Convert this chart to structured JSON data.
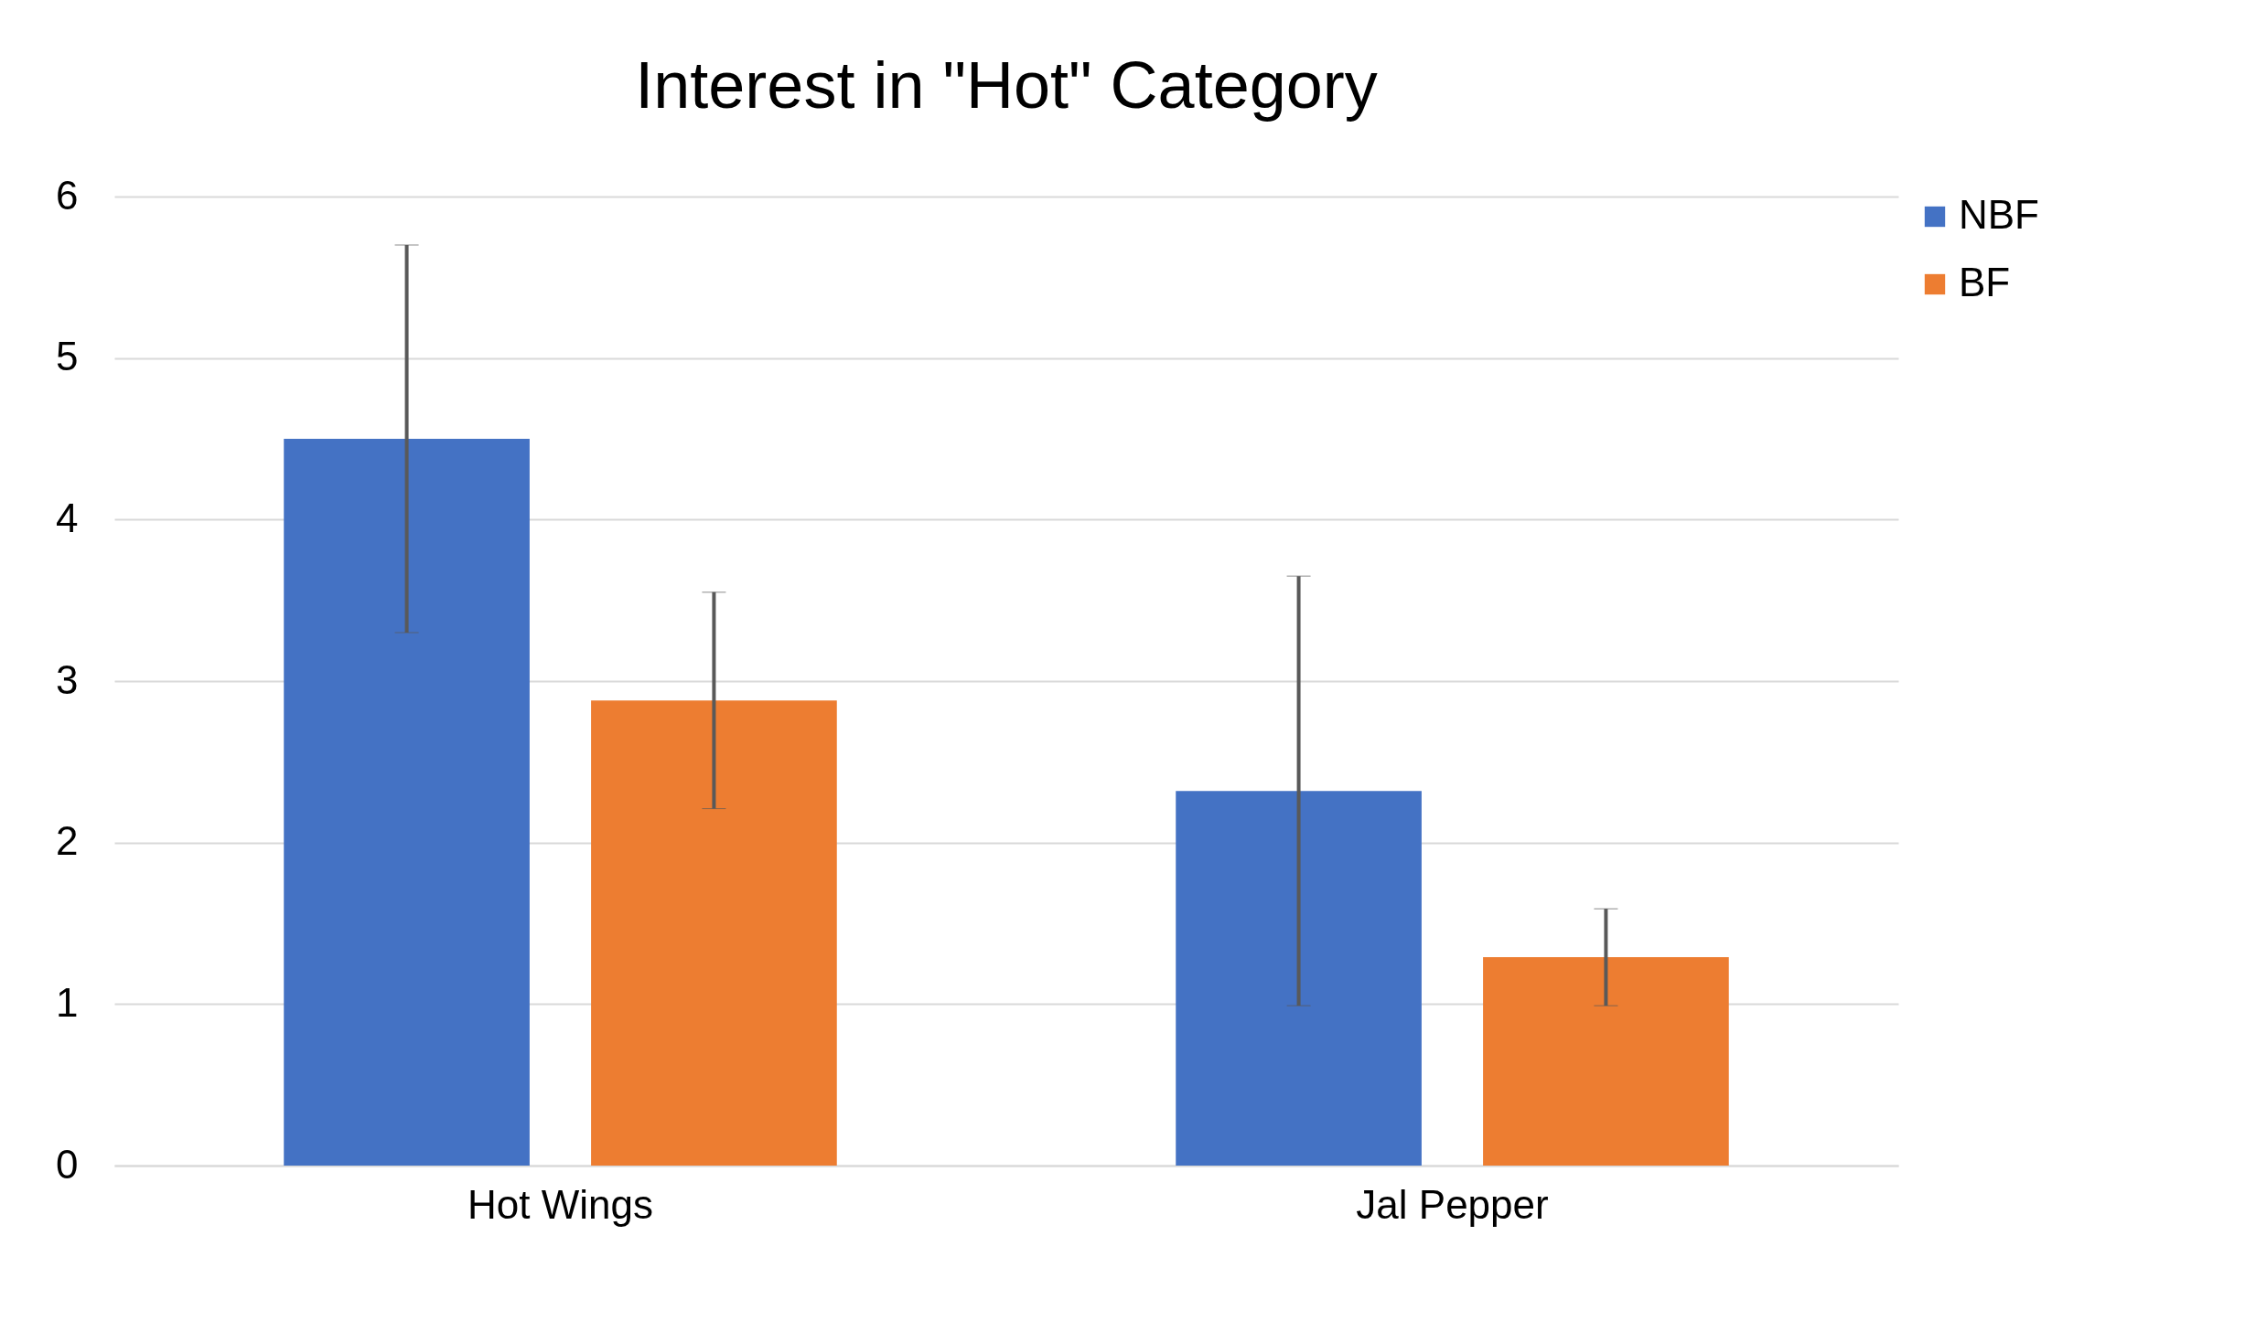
{
  "chart_data": {
    "type": "bar",
    "title": "Interest in \"Hot\" Category",
    "categories": [
      "Hot Wings",
      "Jal Pepper"
    ],
    "series": [
      {
        "name": "NBF",
        "color": "#4472c4",
        "values": [
          4.5,
          2.32
        ],
        "errors": [
          1.2,
          1.33
        ]
      },
      {
        "name": "BF",
        "color": "#ed7d31",
        "values": [
          2.88,
          1.29
        ],
        "errors": [
          0.67,
          0.3
        ]
      }
    ],
    "ylim": [
      0,
      6
    ],
    "yticks": [
      0,
      1,
      2,
      3,
      4,
      5,
      6
    ],
    "grid": "y",
    "legend": "right"
  }
}
